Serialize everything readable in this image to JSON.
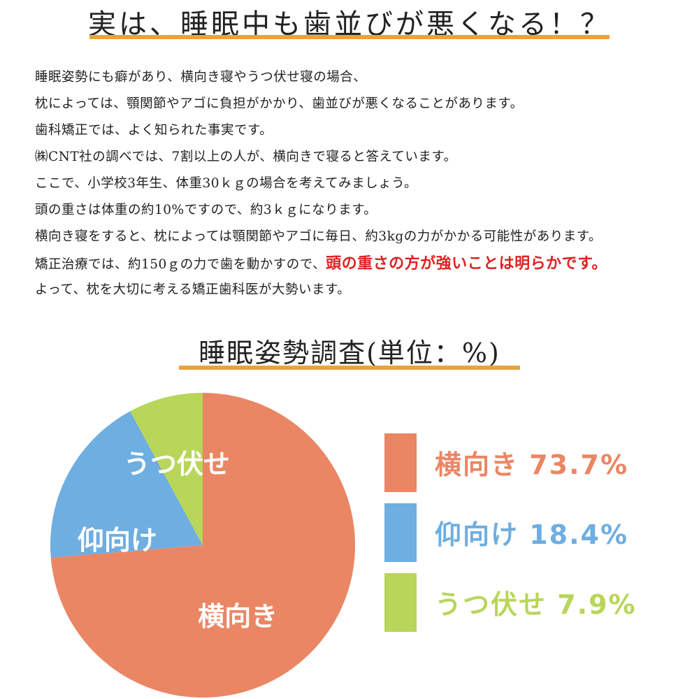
{
  "headline": "実は、睡眠中も歯並びが悪くなる！？",
  "paragraph": [
    {
      "text": "睡眠姿勢にも癖があり、横向き寝やうつ伏せ寝の場合、",
      "emph": ""
    },
    {
      "text": "枕によっては、顎関節やアゴに負担がかかり、歯並びが悪くなることがあります。",
      "emph": ""
    },
    {
      "text": "歯科矯正では、よく知られた事実です。",
      "emph": ""
    },
    {
      "text": "㈱CNT社の調べでは、7割以上の人が、横向きで寝ると答えています。",
      "emph": ""
    },
    {
      "text": "ここで、小学校3年生、体重30ｋｇの場合を考えてみましょう。",
      "emph": ""
    },
    {
      "text": "頭の重さは体重の約10%ですので、約3ｋｇになります。",
      "emph": ""
    },
    {
      "text": "横向き寝をすると、枕によっては顎関節やアゴに毎日、約3kgの力がかかる可能性があります。",
      "emph": ""
    },
    {
      "text": "矯正治療では、約150ｇの力で歯を動かすので、",
      "emph": "頭の重さの方が強いことは明らかです。"
    },
    {
      "text": "よって、枕を大切に考える矯正歯科医が大勢います。",
      "emph": ""
    }
  ],
  "colors": {
    "accent_rule": "#e8a33d",
    "emphasis": "#dd2222",
    "slice_side": "#ea8664",
    "slice_back": "#6faee0",
    "slice_prone": "#b8d65a"
  },
  "chart_data": {
    "type": "pie",
    "title": "睡眠姿勢調査(単位：%)",
    "slices": [
      {
        "label": "横向き",
        "value": 73.7,
        "legend": "横向き 73.7%",
        "color": "#ea8664"
      },
      {
        "label": "仰向け",
        "value": 18.4,
        "legend": "仰向け 18.4%",
        "color": "#6faee0"
      },
      {
        "label": "うつ伏せ",
        "value": 7.9,
        "legend": "うつ伏せ 7.9%",
        "color": "#b8d65a"
      }
    ],
    "legend_position": "right"
  }
}
